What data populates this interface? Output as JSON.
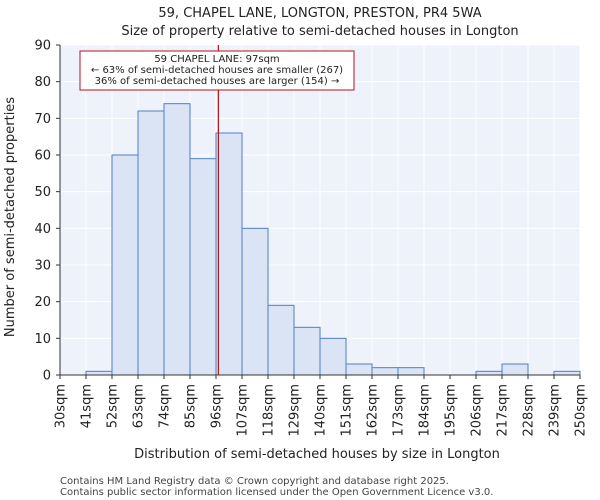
{
  "title_line1": "59, CHAPEL LANE, LONGTON, PRESTON, PR4 5WA",
  "title_line2": "Size of property relative to semi-detached houses in Longton",
  "footer_line1": "Contains HM Land Registry data © Crown copyright and database right 2025.",
  "footer_line2": "Contains public sector information licensed under the Open Government Licence v3.0.",
  "colors": {
    "bar_fill": "#dae4f4",
    "bar_stroke": "#4f7fc2",
    "plot_bg": "#eef2fb",
    "grid": "#ffffff",
    "marker_line": "#b5121b",
    "annotation_border": "#b5121b"
  },
  "chart_data": {
    "type": "bar",
    "title": "Size of property relative to semi-detached houses in Longton",
    "xlabel": "Distribution of semi-detached houses by size in Longton",
    "ylabel": "Number of semi-detached properties",
    "ylim": [
      0,
      90
    ],
    "yticks": [
      0,
      10,
      20,
      30,
      40,
      50,
      60,
      70,
      80,
      90
    ],
    "bin_edges": [
      30,
      41,
      52,
      63,
      74,
      85,
      96,
      107,
      118,
      129,
      140,
      151,
      162,
      173,
      184,
      195,
      206,
      217,
      228,
      239,
      250
    ],
    "tick_labels": [
      "30sqm",
      "41sqm",
      "52sqm",
      "63sqm",
      "74sqm",
      "85sqm",
      "96sqm",
      "107sqm",
      "118sqm",
      "129sqm",
      "140sqm",
      "151sqm",
      "162sqm",
      "173sqm",
      "184sqm",
      "195sqm",
      "206sqm",
      "217sqm",
      "228sqm",
      "239sqm",
      "250sqm"
    ],
    "values": [
      0,
      1,
      60,
      72,
      74,
      59,
      66,
      40,
      19,
      13,
      10,
      3,
      2,
      2,
      0,
      0,
      1,
      3,
      0,
      1
    ],
    "marker_value": 97,
    "grid": true,
    "annotation": {
      "line1": "59 CHAPEL LANE: 97sqm",
      "line2": "← 63% of semi-detached houses are smaller (267)",
      "line3": "36% of semi-detached houses are larger (154) →"
    }
  }
}
